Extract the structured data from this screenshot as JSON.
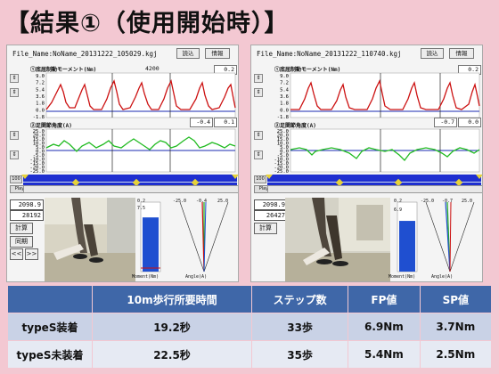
{
  "title": "【結果①（使用開始時）】",
  "app": {
    "load_button": "読込",
    "info_button": "情報",
    "moment_graph_title": "①底屈制動モーメント(Nm)",
    "angle_graph_title": "②足関節角度(A)",
    "moment_ticks": [
      "9.0",
      "7.2",
      "5.4",
      "3.6",
      "1.8",
      "0.0",
      "-1.8"
    ],
    "angle_ticks": [
      "25.0",
      "20.0",
      "15.0",
      "10.0",
      "5.0",
      "0.0",
      "-5.0",
      "-10.0",
      "-15.0",
      "-20.0",
      "-25.0"
    ],
    "play_label": "Play",
    "calc_button": "計算",
    "sync_button": "同期",
    "prev_button": "<<",
    "next_button": ">>",
    "bar_top_label": "0.2",
    "moment_unit_label": "Moment(Nm)",
    "angle_unit_label": "Angle(A)",
    "gauge_ticks": [
      "-25.0",
      "-0.4",
      "25.0"
    ],
    "counter_value": "4200",
    "zoom_value": "100"
  },
  "left_panel": {
    "file_name": "File_Name:NoName_20131222_105029.kgj",
    "moment_value": "0.2",
    "angle_value_1": "-0.4",
    "angle_value_2": "0.1",
    "box1": "2098.9",
    "box2": "28192",
    "bar_value": "7.5",
    "bar_fraction": 0.78
  },
  "right_panel": {
    "file_name": "File_Name:NoName_20131222_110740.kgj",
    "moment_value": "0.2",
    "angle_value_1": "-0.7",
    "angle_value_2": "0.0",
    "box1": "2098.9",
    "box2": "26427",
    "bar_value": "6.9",
    "bar_fraction": 0.73,
    "gauge_ticks": [
      "-25.0",
      "-0.7",
      "25.0"
    ],
    "bar_top_label": "0.2"
  },
  "result_table": {
    "headers": [
      "",
      "10m歩行所要時間",
      "ステップ数",
      "FP値",
      "SP値"
    ],
    "rows": [
      [
        "typeS装着",
        "19.2秒",
        "33歩",
        "6.9Nm",
        "3.7Nm"
      ],
      [
        "typeS未装着",
        "22.5秒",
        "35歩",
        "5.4Nm",
        "2.5Nm"
      ]
    ]
  },
  "colors": {
    "background": "#f3c8d2",
    "header_bg": "#3f67a8",
    "row1_bg": "#c9d2e6",
    "row2_bg": "#e6eaf3",
    "moment_line": "#cc1111",
    "angle_line": "#22bb22",
    "timeline": "#1f2fd0"
  }
}
